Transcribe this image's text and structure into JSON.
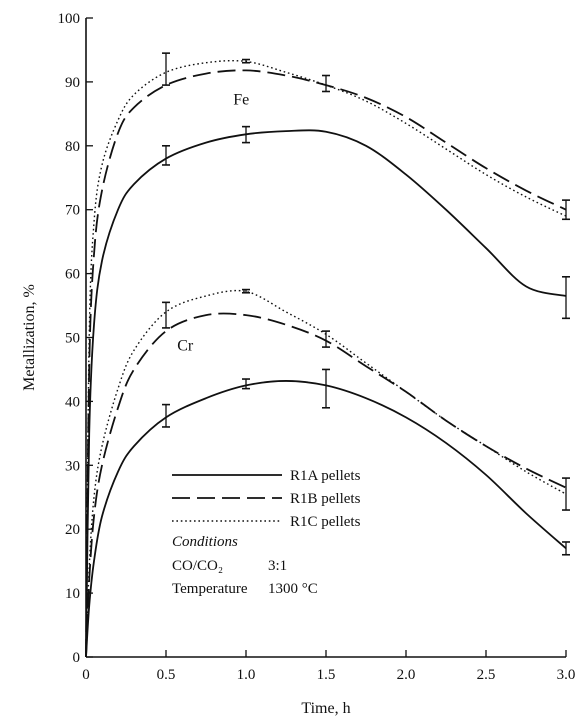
{
  "colors": {
    "ink": "#111111",
    "background": "#ffffff"
  },
  "chart_data": {
    "type": "line",
    "title": "",
    "xlabel": "Time, h",
    "ylabel": "Metallization, %",
    "xlim": [
      0,
      3.0
    ],
    "ylim": [
      0,
      100
    ],
    "xticks": [
      0,
      0.5,
      1.0,
      1.5,
      2.0,
      2.5,
      3.0
    ],
    "xtick_labels": [
      "0",
      "0.5",
      "1.0",
      "1.5",
      "2.0",
      "2.5",
      "3.0"
    ],
    "yticks": [
      0,
      10,
      20,
      30,
      40,
      50,
      60,
      70,
      80,
      90,
      100
    ],
    "ytick_labels": [
      "0",
      "10",
      "20",
      "30",
      "40",
      "50",
      "60",
      "70",
      "80",
      "90",
      "100"
    ],
    "grid": false,
    "group_labels": [
      {
        "text": "Fe",
        "x": 0.97,
        "y": 86.5
      },
      {
        "text": "Cr",
        "x": 0.62,
        "y": 48.0
      }
    ],
    "series": [
      {
        "name": "R1A pellets",
        "element": "Fe",
        "style": "solid",
        "x": [
          0,
          0.02,
          0.05,
          0.1,
          0.2,
          0.3,
          0.5,
          0.75,
          1.0,
          1.25,
          1.5,
          1.75,
          2.0,
          2.25,
          2.5,
          2.75,
          3.0
        ],
        "y": [
          0,
          35,
          52,
          62,
          70,
          74,
          78,
          80.5,
          81.8,
          82.3,
          82.2,
          80,
          75.5,
          70,
          64,
          58,
          56.5
        ],
        "error_x": [
          0.5,
          1.0,
          3.0
        ],
        "error_y": [
          [
            77,
            80
          ],
          [
            80.5,
            83
          ],
          [
            53,
            59.5
          ]
        ]
      },
      {
        "name": "R1B pellets",
        "element": "Fe",
        "style": "dashed",
        "x": [
          0,
          0.02,
          0.05,
          0.1,
          0.2,
          0.3,
          0.5,
          0.75,
          1.0,
          1.25,
          1.5,
          1.75,
          2.0,
          2.25,
          2.5,
          2.75,
          3.0
        ],
        "y": [
          0,
          45,
          63,
          73,
          82,
          86,
          89.5,
          91.3,
          91.8,
          91,
          89.5,
          87.5,
          84.5,
          80.5,
          76.5,
          73,
          70
        ],
        "error_x": [
          0.5,
          1.5,
          3.0
        ],
        "error_y": [
          [
            89.5,
            94.5
          ],
          [
            88.5,
            91
          ],
          [
            68.5,
            71.5
          ]
        ]
      },
      {
        "name": "R1C pellets",
        "element": "Fe",
        "style": "dotted",
        "x": [
          0,
          0.02,
          0.05,
          0.1,
          0.2,
          0.3,
          0.5,
          0.75,
          1.0,
          1.25,
          1.5,
          1.75,
          2.0,
          2.25,
          2.5,
          2.75,
          3.0
        ],
        "y": [
          0,
          50,
          68,
          77,
          84,
          88,
          91.5,
          93,
          93.2,
          91.5,
          89.5,
          87,
          83.5,
          79.5,
          75.5,
          72,
          69
        ],
        "error_x": [
          1.0
        ],
        "error_y": [
          [
            93,
            93.5
          ]
        ]
      },
      {
        "name": "R1A pellets",
        "element": "Cr",
        "style": "solid",
        "x": [
          0,
          0.02,
          0.05,
          0.1,
          0.2,
          0.3,
          0.5,
          0.75,
          1.0,
          1.25,
          1.5,
          1.75,
          2.0,
          2.25,
          2.5,
          2.75,
          3.0
        ],
        "y": [
          0,
          8,
          15,
          22,
          29,
          33,
          37.5,
          40.5,
          42.5,
          43.2,
          42.5,
          40.5,
          37.5,
          33.5,
          28.5,
          22.5,
          17
        ],
        "error_x": [
          0.5,
          1.0,
          1.5,
          3.0
        ],
        "error_y": [
          [
            36,
            39.5
          ],
          [
            42,
            43.5
          ],
          [
            39,
            45
          ],
          [
            16,
            18
          ]
        ]
      },
      {
        "name": "R1B pellets",
        "element": "Cr",
        "style": "dashed",
        "x": [
          0,
          0.02,
          0.05,
          0.1,
          0.2,
          0.3,
          0.5,
          0.75,
          1.0,
          1.25,
          1.5,
          1.75,
          2.0,
          2.25,
          2.5,
          2.75,
          3.0
        ],
        "y": [
          0,
          12,
          22,
          30,
          39,
          45,
          51,
          53.5,
          53.5,
          52,
          49.5,
          45.5,
          41.5,
          37,
          33,
          29.5,
          26.5
        ],
        "error_x": [
          0.5,
          1.5,
          3.0
        ],
        "error_y": [
          [
            51.5,
            55.5
          ],
          [
            48.5,
            51
          ],
          [
            23,
            28
          ]
        ]
      },
      {
        "name": "R1C pellets",
        "element": "Cr",
        "style": "dotted",
        "x": [
          0,
          0.02,
          0.05,
          0.1,
          0.2,
          0.3,
          0.5,
          0.75,
          1.0,
          1.25,
          1.5,
          1.75,
          2.0,
          2.25,
          2.5,
          2.75,
          3.0
        ],
        "y": [
          0,
          14,
          25,
          33,
          42,
          48,
          54,
          56.5,
          57.2,
          54,
          50.5,
          46,
          41.5,
          37,
          33,
          29,
          25.5
        ],
        "error_x": [
          1.0
        ],
        "error_y": [
          [
            57,
            57.5
          ]
        ]
      }
    ],
    "legend": {
      "placement": "lower-left",
      "entries": [
        {
          "label": "R1A pellets",
          "style": "solid"
        },
        {
          "label": "R1B pellets",
          "style": "dashed"
        },
        {
          "label": "R1C pellets",
          "style": "dotted"
        }
      ]
    },
    "conditions": {
      "title": "Conditions",
      "rows": [
        {
          "label": "CO/CO₂",
          "value": "3:1"
        },
        {
          "label": "Temperature",
          "value": "1300 °C"
        }
      ]
    }
  }
}
